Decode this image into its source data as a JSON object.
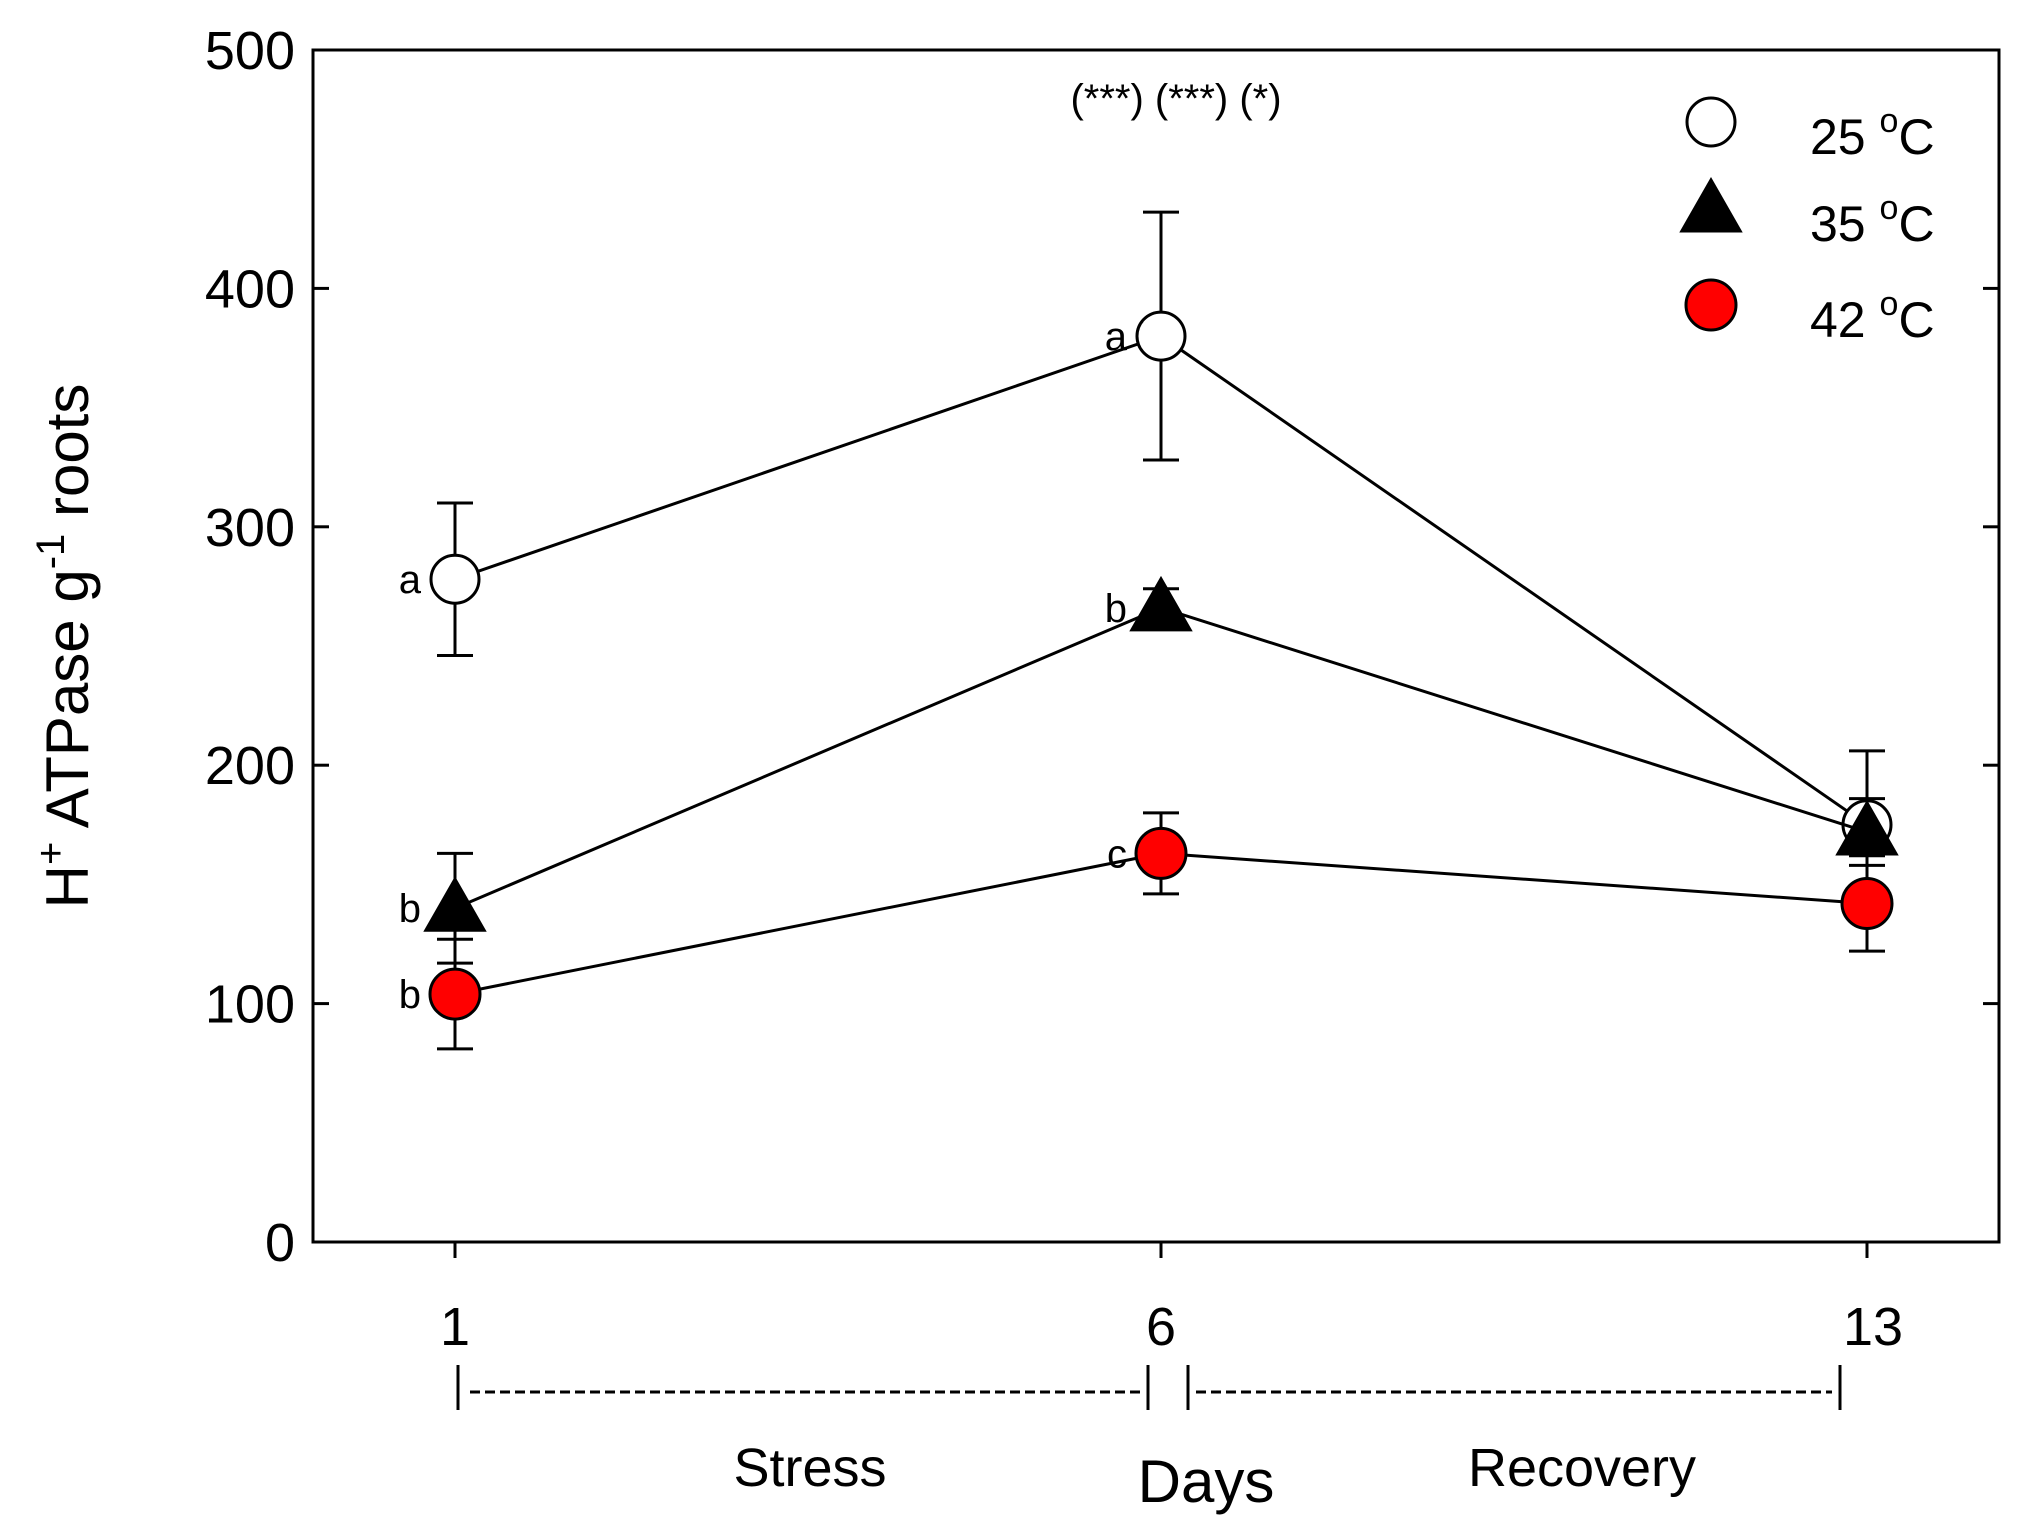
{
  "chart_data": {
    "type": "line",
    "title": "",
    "xlabel": "Days",
    "ylabel_main": "H",
    "ylabel_sup": "+",
    "ylabel_mid": " ATPase g",
    "ylabel_sup2": "-1",
    "ylabel_end": " roots",
    "ylim": [
      0,
      500
    ],
    "yticks": [
      0,
      100,
      200,
      300,
      400,
      500
    ],
    "x": [
      1,
      6,
      13
    ],
    "x_tick_labels": [
      "1",
      "6",
      "13"
    ],
    "series": [
      {
        "name": "25 °C",
        "legend_main": "25 ",
        "legend_sup": "o",
        "legend_end": "C",
        "marker": "open-circle",
        "color": "#ffffff",
        "values": [
          278,
          380,
          175
        ],
        "errors": [
          32,
          52,
          31
        ],
        "letters": [
          "a",
          "a",
          ""
        ]
      },
      {
        "name": "35 °C",
        "legend_main": "35 ",
        "legend_sup": "o",
        "legend_end": "C",
        "marker": "filled-triangle",
        "color": "#000000",
        "values": [
          140,
          266,
          172
        ],
        "errors": [
          23,
          8,
          14
        ],
        "letters": [
          "b",
          "b",
          ""
        ]
      },
      {
        "name": "42 °C",
        "legend_main": "42 ",
        "legend_sup": "o",
        "legend_end": "C",
        "marker": "red-circle",
        "color": "#ff0000",
        "values": [
          104,
          163,
          142
        ],
        "errors": [
          23,
          17,
          20
        ],
        "letters": [
          "b",
          "c",
          ""
        ]
      }
    ],
    "annotations": {
      "significance": "(***) (***) (*)"
    },
    "periods": {
      "stress": "Stress",
      "recovery": "Recovery"
    },
    "legend_position": "top-right"
  }
}
